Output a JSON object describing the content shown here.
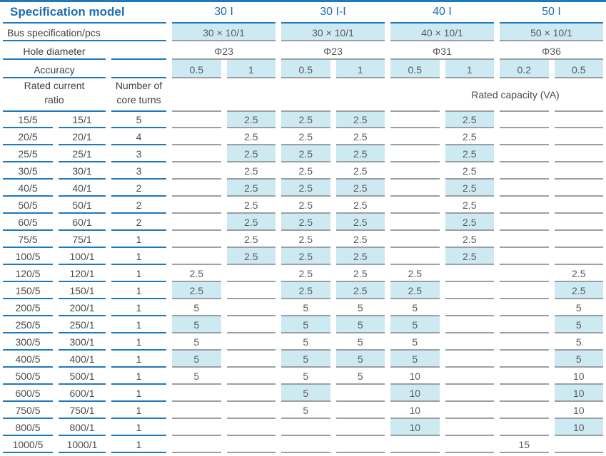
{
  "table": {
    "colors": {
      "accent_blue_text": "#1b6cb1",
      "accent_blue_line": "#1e79bd",
      "gray_line": "#9aa0a4",
      "cell_shade": "#cde9f2"
    },
    "header": {
      "spec_model_label": "Specification model",
      "models": [
        "30 I",
        "30 I-I",
        "40 I",
        "50 I"
      ],
      "bus_label": "Bus specification/pcs",
      "bus_values": [
        "30 × 10/1",
        "30 × 10/1",
        "40 × 10/1",
        "50 × 10/1"
      ],
      "hole_label": "Hole diameter",
      "hole_values": [
        "Φ23",
        "Φ23",
        "Φ31",
        "Φ36"
      ],
      "accuracy_label": "Accuracy",
      "accuracy_values": [
        "0.5",
        "1",
        "0.5",
        "1",
        "0.5",
        "1",
        "0.2",
        "0.5"
      ],
      "ratio_label": [
        "Rated current",
        "ratio"
      ],
      "turns_label": [
        "Number of",
        "core turns"
      ],
      "capacity_label": "Rated capacity (VA)"
    },
    "rows": [
      {
        "ratio5": "15/5",
        "ratio1": "15/1",
        "turns": "5",
        "shaded": true,
        "values": [
          "",
          "2.5",
          "2.5",
          "2.5",
          "",
          "2.5",
          "",
          ""
        ]
      },
      {
        "ratio5": "20/5",
        "ratio1": "20/1",
        "turns": "4",
        "shaded": false,
        "values": [
          "",
          "2.5",
          "2.5",
          "2.5",
          "",
          "2.5",
          "",
          ""
        ]
      },
      {
        "ratio5": "25/5",
        "ratio1": "25/1",
        "turns": "3",
        "shaded": true,
        "values": [
          "",
          "2.5",
          "2.5",
          "2.5",
          "",
          "2.5",
          "",
          ""
        ]
      },
      {
        "ratio5": "30/5",
        "ratio1": "30/1",
        "turns": "3",
        "shaded": false,
        "values": [
          "",
          "2.5",
          "2.5",
          "2.5",
          "",
          "2.5",
          "",
          ""
        ]
      },
      {
        "ratio5": "40/5",
        "ratio1": "40/1",
        "turns": "2",
        "shaded": true,
        "values": [
          "",
          "2.5",
          "2.5",
          "2.5",
          "",
          "2.5",
          "",
          ""
        ]
      },
      {
        "ratio5": "50/5",
        "ratio1": "50/1",
        "turns": "2",
        "shaded": false,
        "values": [
          "",
          "2.5",
          "2.5",
          "2.5",
          "",
          "2.5",
          "",
          ""
        ]
      },
      {
        "ratio5": "60/5",
        "ratio1": "60/1",
        "turns": "2",
        "shaded": true,
        "values": [
          "",
          "2.5",
          "2.5",
          "2.5",
          "",
          "2.5",
          "",
          ""
        ]
      },
      {
        "ratio5": "75/5",
        "ratio1": "75/1",
        "turns": "1",
        "shaded": false,
        "values": [
          "",
          "2.5",
          "2.5",
          "2.5",
          "",
          "2.5",
          "",
          ""
        ]
      },
      {
        "ratio5": "100/5",
        "ratio1": "100/1",
        "turns": "1",
        "shaded": true,
        "values": [
          "",
          "2.5",
          "2.5",
          "2.5",
          "",
          "2.5",
          "",
          ""
        ]
      },
      {
        "ratio5": "120/5",
        "ratio1": "120/1",
        "turns": "1",
        "shaded": false,
        "values": [
          "2.5",
          "",
          "2.5",
          "2.5",
          "2.5",
          "",
          "",
          "2.5"
        ]
      },
      {
        "ratio5": "150/5",
        "ratio1": "150/1",
        "turns": "1",
        "shaded": true,
        "values": [
          "2.5",
          "",
          "2.5",
          "2.5",
          "2.5",
          "",
          "",
          "2.5"
        ]
      },
      {
        "ratio5": "200/5",
        "ratio1": "200/1",
        "turns": "1",
        "shaded": false,
        "values": [
          "5",
          "",
          "5",
          "5",
          "5",
          "",
          "",
          "5"
        ]
      },
      {
        "ratio5": "250/5",
        "ratio1": "250/1",
        "turns": "1",
        "shaded": true,
        "values": [
          "5",
          "",
          "5",
          "5",
          "5",
          "",
          "",
          "5"
        ]
      },
      {
        "ratio5": "300/5",
        "ratio1": "300/1",
        "turns": "1",
        "shaded": false,
        "values": [
          "5",
          "",
          "5",
          "5",
          "5",
          "",
          "",
          "5"
        ]
      },
      {
        "ratio5": "400/5",
        "ratio1": "400/1",
        "turns": "1",
        "shaded": true,
        "values": [
          "5",
          "",
          "5",
          "5",
          "5",
          "",
          "",
          "5"
        ]
      },
      {
        "ratio5": "500/5",
        "ratio1": "500/1",
        "turns": "1",
        "shaded": false,
        "values": [
          "5",
          "",
          "5",
          "5",
          "10",
          "",
          "",
          "10"
        ]
      },
      {
        "ratio5": "600/5",
        "ratio1": "600/1",
        "turns": "1",
        "shaded": true,
        "values": [
          "",
          "",
          "5",
          "",
          "10",
          "",
          "",
          "10"
        ]
      },
      {
        "ratio5": "750/5",
        "ratio1": "750/1",
        "turns": "1",
        "shaded": false,
        "values": [
          "",
          "",
          "5",
          "",
          "10",
          "",
          "",
          "10"
        ]
      },
      {
        "ratio5": "800/5",
        "ratio1": "800/1",
        "turns": "1",
        "shaded": true,
        "values": [
          "",
          "",
          "",
          "",
          "10",
          "",
          "",
          "10"
        ]
      },
      {
        "ratio5": "1000/5",
        "ratio1": "1000/1",
        "turns": "1",
        "shaded": false,
        "values": [
          "",
          "",
          "",
          "",
          "",
          "",
          "15",
          ""
        ]
      }
    ]
  }
}
